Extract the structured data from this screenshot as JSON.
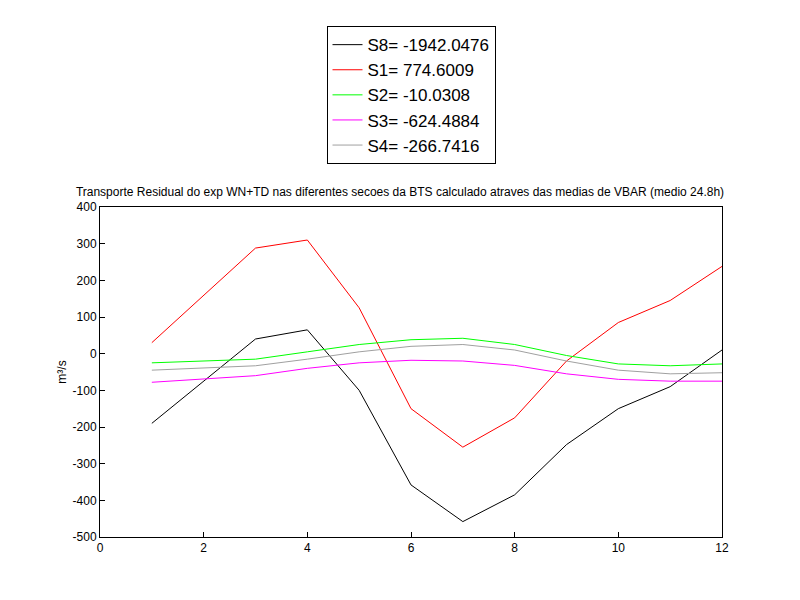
{
  "chart_data": {
    "type": "line",
    "title": "Transporte Residual do exp WN+TD nas diferentes secoes da BTS calculado atraves das medias de VBAR (medio 24.8h)",
    "y_label": "m³/s",
    "x": [
      1,
      2,
      3,
      4,
      5,
      6,
      7,
      8,
      9,
      10,
      11,
      12
    ],
    "series": [
      {
        "name": "S8= -1942.0476",
        "color": "#000000",
        "values": [
          -190,
          -75,
          40,
          65,
          -100,
          -358,
          -458,
          -385,
          -248,
          -150,
          -90,
          10
        ]
      },
      {
        "name": "S1= 774.6009",
        "color": "#ff0000",
        "values": [
          30,
          160,
          288,
          310,
          125,
          -150,
          -255,
          -175,
          -20,
          85,
          145,
          238
        ]
      },
      {
        "name": "S2= -10.0308",
        "color": "#00ff00",
        "values": [
          -25,
          -20,
          -15,
          5,
          25,
          38,
          42,
          25,
          -5,
          -28,
          -33,
          -28
        ]
      },
      {
        "name": "S3= -624.4884",
        "color": "#ff00ff",
        "values": [
          -78,
          -70,
          -60,
          -40,
          -25,
          -18,
          -20,
          -32,
          -55,
          -70,
          -75,
          -75
        ]
      },
      {
        "name": "S4= -266.7416",
        "color": "#a0a0a0",
        "values": [
          -45,
          -40,
          -33,
          -15,
          5,
          20,
          25,
          10,
          -20,
          -45,
          -55,
          -52
        ]
      }
    ],
    "xlim": [
      0,
      12
    ],
    "xticks": [
      0,
      2,
      4,
      6,
      8,
      10,
      12
    ],
    "ylim": [
      -500,
      400
    ],
    "yticks": [
      -500,
      -400,
      -300,
      -200,
      -100,
      0,
      100,
      200,
      300,
      400
    ],
    "grid": false,
    "legend": "top"
  }
}
